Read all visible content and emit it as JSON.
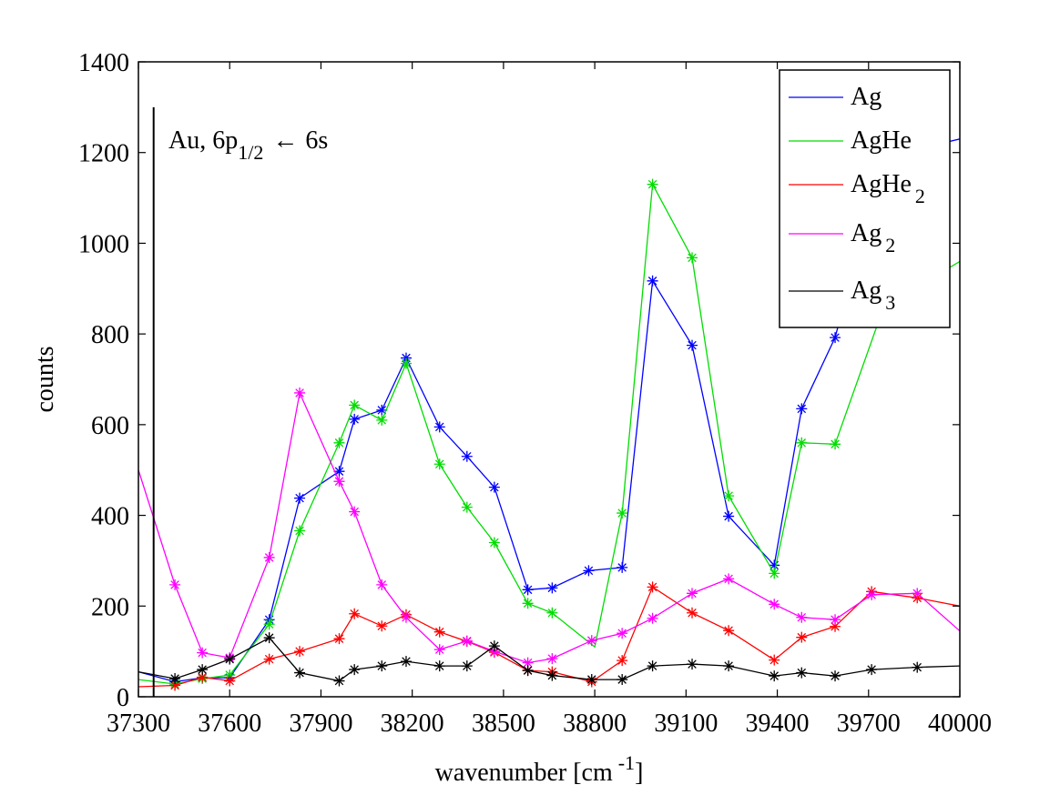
{
  "chart_data": {
    "type": "line",
    "title": "",
    "xlabel": "wavenumber [cm",
    "xlabel_sup": "-1",
    "xlabel_close": "]",
    "ylabel": "counts",
    "xlim": [
      37300,
      40000
    ],
    "ylim": [
      0,
      1400
    ],
    "xticks": [
      "37300",
      "37600",
      "37900",
      "38200",
      "38500",
      "38800",
      "39100",
      "39400",
      "39700",
      "40000"
    ],
    "yticks": [
      "0",
      "200",
      "400",
      "600",
      "800",
      "1000",
      "1200",
      "1400"
    ],
    "grid": false,
    "legend_position": "top-right",
    "marker": "asterisk",
    "annotation": {
      "x": 37350,
      "line_top": 1300,
      "text_main": "Au, 6p",
      "text_sub": "1/2",
      "text_arrow": "←",
      "text_end": "6s"
    },
    "series": [
      {
        "name": "Ag",
        "name_sub": "",
        "color": "#0000ff",
        "points": [
          [
            37300,
            55
          ],
          [
            37420,
            33
          ],
          [
            37510,
            42
          ],
          [
            37600,
            42
          ],
          [
            37730,
            170
          ],
          [
            37830,
            438
          ],
          [
            37960,
            497
          ],
          [
            38010,
            612
          ],
          [
            38100,
            632
          ],
          [
            38180,
            747
          ],
          [
            38290,
            595
          ],
          [
            38380,
            530
          ],
          [
            38470,
            462
          ],
          [
            38580,
            236
          ],
          [
            38660,
            240
          ],
          [
            38780,
            278
          ],
          [
            38890,
            285
          ],
          [
            38990,
            917
          ],
          [
            39120,
            775
          ],
          [
            39240,
            398
          ],
          [
            39390,
            290
          ],
          [
            39480,
            635
          ],
          [
            39590,
            792
          ],
          [
            39750,
            1190
          ],
          [
            40000,
            1230
          ]
        ],
        "markers": [
          [
            37420,
            33
          ],
          [
            37510,
            42
          ],
          [
            37600,
            42
          ],
          [
            37730,
            170
          ],
          [
            37830,
            438
          ],
          [
            37960,
            497
          ],
          [
            38010,
            612
          ],
          [
            38100,
            632
          ],
          [
            38180,
            747
          ],
          [
            38290,
            595
          ],
          [
            38380,
            530
          ],
          [
            38470,
            462
          ],
          [
            38580,
            236
          ],
          [
            38660,
            240
          ],
          [
            38780,
            278
          ],
          [
            38890,
            285
          ],
          [
            38990,
            917
          ],
          [
            39120,
            775
          ],
          [
            39240,
            398
          ],
          [
            39390,
            290
          ],
          [
            39480,
            635
          ],
          [
            39590,
            792
          ]
        ]
      },
      {
        "name": "AgHe",
        "name_sub": "",
        "color": "#00dd00",
        "points": [
          [
            37300,
            38
          ],
          [
            37420,
            28
          ],
          [
            37510,
            40
          ],
          [
            37600,
            48
          ],
          [
            37730,
            160
          ],
          [
            37830,
            366
          ],
          [
            37960,
            560
          ],
          [
            38010,
            643
          ],
          [
            38100,
            610
          ],
          [
            38180,
            735
          ],
          [
            38290,
            513
          ],
          [
            38380,
            418
          ],
          [
            38470,
            340
          ],
          [
            38580,
            206
          ],
          [
            38660,
            185
          ],
          [
            38800,
            110
          ],
          [
            38890,
            405
          ],
          [
            38990,
            1130
          ],
          [
            39120,
            968
          ],
          [
            39240,
            443
          ],
          [
            39390,
            272
          ],
          [
            39480,
            560
          ],
          [
            39590,
            557
          ],
          [
            39750,
            860
          ],
          [
            40000,
            960
          ]
        ],
        "markers": [
          [
            37420,
            28
          ],
          [
            37510,
            40
          ],
          [
            37600,
            48
          ],
          [
            37730,
            160
          ],
          [
            37830,
            366
          ],
          [
            37960,
            560
          ],
          [
            38010,
            643
          ],
          [
            38100,
            610
          ],
          [
            38180,
            735
          ],
          [
            38290,
            513
          ],
          [
            38380,
            418
          ],
          [
            38470,
            340
          ],
          [
            38580,
            206
          ],
          [
            38660,
            185
          ],
          [
            38890,
            405
          ],
          [
            38990,
            1130
          ],
          [
            39120,
            968
          ],
          [
            39240,
            443
          ],
          [
            39390,
            272
          ],
          [
            39480,
            560
          ],
          [
            39590,
            557
          ]
        ]
      },
      {
        "name": "AgHe",
        "name_sub": "2",
        "color": "#ff0000",
        "points": [
          [
            37300,
            22
          ],
          [
            37420,
            25
          ],
          [
            37510,
            43
          ],
          [
            37600,
            35
          ],
          [
            37730,
            83
          ],
          [
            37830,
            100
          ],
          [
            37960,
            128
          ],
          [
            38010,
            183
          ],
          [
            38100,
            156
          ],
          [
            38180,
            181
          ],
          [
            38290,
            143
          ],
          [
            38380,
            122
          ],
          [
            38470,
            98
          ],
          [
            38580,
            58
          ],
          [
            38660,
            55
          ],
          [
            38790,
            33
          ],
          [
            38890,
            80
          ],
          [
            38990,
            242
          ],
          [
            39120,
            185
          ],
          [
            39240,
            146
          ],
          [
            39390,
            81
          ],
          [
            39480,
            131
          ],
          [
            39590,
            155
          ],
          [
            39710,
            232
          ],
          [
            39860,
            218
          ],
          [
            40000,
            200
          ]
        ],
        "markers": [
          [
            37420,
            25
          ],
          [
            37510,
            43
          ],
          [
            37600,
            35
          ],
          [
            37730,
            83
          ],
          [
            37830,
            100
          ],
          [
            37960,
            128
          ],
          [
            38010,
            183
          ],
          [
            38100,
            156
          ],
          [
            38180,
            181
          ],
          [
            38290,
            143
          ],
          [
            38380,
            122
          ],
          [
            38470,
            98
          ],
          [
            38580,
            58
          ],
          [
            38660,
            55
          ],
          [
            38790,
            33
          ],
          [
            38890,
            80
          ],
          [
            38990,
            242
          ],
          [
            39120,
            185
          ],
          [
            39240,
            146
          ],
          [
            39390,
            81
          ],
          [
            39480,
            131
          ],
          [
            39590,
            155
          ],
          [
            39710,
            232
          ],
          [
            39860,
            218
          ]
        ]
      },
      {
        "name": "Ag",
        "name_sub": "2",
        "color": "#ff00ff",
        "points": [
          [
            37300,
            500
          ],
          [
            37420,
            247
          ],
          [
            37510,
            97
          ],
          [
            37600,
            86
          ],
          [
            37730,
            307
          ],
          [
            37830,
            670
          ],
          [
            37960,
            475
          ],
          [
            38010,
            408
          ],
          [
            38100,
            247
          ],
          [
            38180,
            175
          ],
          [
            38290,
            104
          ],
          [
            38380,
            123
          ],
          [
            38470,
            100
          ],
          [
            38580,
            75
          ],
          [
            38660,
            84
          ],
          [
            38790,
            124
          ],
          [
            38890,
            140
          ],
          [
            38990,
            173
          ],
          [
            39120,
            228
          ],
          [
            39240,
            260
          ],
          [
            39390,
            204
          ],
          [
            39480,
            175
          ],
          [
            39590,
            170
          ],
          [
            39710,
            225
          ],
          [
            39860,
            228
          ],
          [
            40000,
            145
          ]
        ],
        "markers": [
          [
            37420,
            247
          ],
          [
            37510,
            97
          ],
          [
            37600,
            86
          ],
          [
            37730,
            307
          ],
          [
            37830,
            670
          ],
          [
            37960,
            475
          ],
          [
            38010,
            408
          ],
          [
            38100,
            247
          ],
          [
            38180,
            175
          ],
          [
            38290,
            104
          ],
          [
            38380,
            123
          ],
          [
            38470,
            100
          ],
          [
            38580,
            75
          ],
          [
            38660,
            84
          ],
          [
            38790,
            124
          ],
          [
            38890,
            140
          ],
          [
            38990,
            173
          ],
          [
            39120,
            228
          ],
          [
            39240,
            260
          ],
          [
            39390,
            204
          ],
          [
            39480,
            175
          ],
          [
            39590,
            170
          ],
          [
            39710,
            225
          ],
          [
            39860,
            228
          ]
        ]
      },
      {
        "name": "Ag",
        "name_sub": "3",
        "color": "#000000",
        "points": [
          [
            37300,
            55
          ],
          [
            37420,
            40
          ],
          [
            37510,
            60
          ],
          [
            37600,
            83
          ],
          [
            37730,
            130
          ],
          [
            37830,
            53
          ],
          [
            37960,
            35
          ],
          [
            38010,
            60
          ],
          [
            38100,
            68
          ],
          [
            38180,
            78
          ],
          [
            38290,
            68
          ],
          [
            38380,
            68
          ],
          [
            38470,
            112
          ],
          [
            38580,
            58
          ],
          [
            38660,
            47
          ],
          [
            38790,
            38
          ],
          [
            38890,
            38
          ],
          [
            38990,
            68
          ],
          [
            39120,
            72
          ],
          [
            39240,
            68
          ],
          [
            39390,
            46
          ],
          [
            39480,
            53
          ],
          [
            39590,
            46
          ],
          [
            39710,
            60
          ],
          [
            39860,
            65
          ],
          [
            40000,
            68
          ]
        ],
        "markers": [
          [
            37420,
            40
          ],
          [
            37510,
            60
          ],
          [
            37600,
            83
          ],
          [
            37730,
            130
          ],
          [
            37830,
            53
          ],
          [
            37960,
            35
          ],
          [
            38010,
            60
          ],
          [
            38100,
            68
          ],
          [
            38180,
            78
          ],
          [
            38290,
            68
          ],
          [
            38380,
            68
          ],
          [
            38470,
            112
          ],
          [
            38580,
            58
          ],
          [
            38660,
            47
          ],
          [
            38790,
            38
          ],
          [
            38890,
            38
          ],
          [
            38990,
            68
          ],
          [
            39120,
            72
          ],
          [
            39240,
            68
          ],
          [
            39390,
            46
          ],
          [
            39480,
            53
          ],
          [
            39590,
            46
          ],
          [
            39710,
            60
          ],
          [
            39860,
            65
          ]
        ]
      }
    ]
  }
}
